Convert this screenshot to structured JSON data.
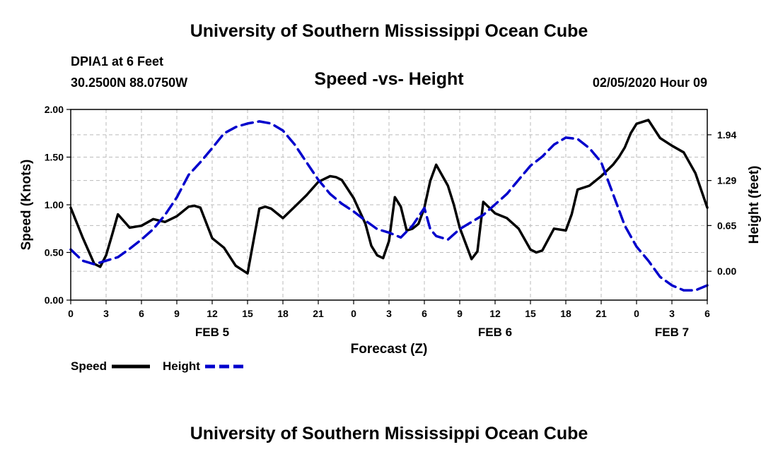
{
  "header": {
    "top_title": "University of Southern Mississippi Ocean Cube",
    "station": "DPIA1 at 6 Feet",
    "coords": "30.2500N 88.0750W",
    "datetime": "02/05/2020 Hour 09",
    "bottom_title": "University of Southern Mississippi Ocean Cube"
  },
  "colors": {
    "speed": "#000000",
    "height": "#0000cc",
    "grid": "#bbbbbb"
  },
  "legend": {
    "speed_label": "Speed",
    "height_label": "Height"
  },
  "chart_data": {
    "type": "line",
    "title": "Speed -vs- Height",
    "xlabel": "Forecast (Z)",
    "ylabel": "Speed (Knots)",
    "ylabel_right": "Height (feet)",
    "xlim": [
      0,
      54
    ],
    "ylim": [
      0,
      2
    ],
    "ylim_right": [
      -0.41,
      2.3
    ],
    "x_ticks": [
      0,
      3,
      6,
      9,
      12,
      15,
      18,
      21,
      24,
      27,
      30,
      33,
      36,
      39,
      42,
      45,
      48,
      51,
      54
    ],
    "x_tick_labels": [
      "0",
      "3",
      "6",
      "9",
      "12",
      "15",
      "18",
      "21",
      "0",
      "3",
      "6",
      "9",
      "12",
      "15",
      "18",
      "21",
      "0",
      "3",
      "6"
    ],
    "y_ticks": [
      0,
      0.5,
      1,
      1.5,
      2
    ],
    "y_tick_labels": [
      "0.00",
      "0.50",
      "1.00",
      "1.50",
      "2.00"
    ],
    "y_right_ticks": [
      0,
      0.65,
      1.29,
      1.94
    ],
    "y_right_tick_labels": [
      "0.00",
      "0.65",
      "1.29",
      "1.94"
    ],
    "date_labels": [
      {
        "x": 12,
        "label": "FEB 5"
      },
      {
        "x": 36,
        "label": "FEB 6"
      },
      {
        "x": 51,
        "label": "FEB 7"
      }
    ],
    "series": [
      {
        "name": "Speed",
        "axis": "left",
        "x": [
          0,
          1,
          2,
          2.5,
          3,
          3.5,
          4,
          5,
          6,
          7,
          8,
          9,
          10,
          10.5,
          11,
          12,
          13,
          14,
          15,
          16,
          16.5,
          17,
          18,
          19,
          20,
          21,
          22,
          22.5,
          23,
          24,
          25,
          25.5,
          26,
          26.5,
          27,
          27.5,
          28,
          28.5,
          29,
          29.5,
          30,
          30.5,
          31,
          32,
          32.5,
          33,
          34,
          34.5,
          35,
          36,
          37,
          38,
          39,
          39.5,
          40,
          41,
          42,
          42.5,
          43,
          44,
          45,
          46,
          46.5,
          47,
          47.5,
          48,
          49,
          50,
          51,
          52,
          53,
          54
        ],
        "values": [
          0.97,
          0.66,
          0.38,
          0.35,
          0.47,
          0.68,
          0.9,
          0.76,
          0.78,
          0.85,
          0.82,
          0.88,
          0.98,
          0.99,
          0.97,
          0.65,
          0.55,
          0.36,
          0.28,
          0.96,
          0.98,
          0.96,
          0.86,
          0.98,
          1.1,
          1.24,
          1.3,
          1.29,
          1.26,
          1.07,
          0.8,
          0.57,
          0.47,
          0.44,
          0.62,
          1.08,
          0.98,
          0.73,
          0.75,
          0.8,
          0.97,
          1.25,
          1.42,
          1.2,
          1.0,
          0.76,
          0.43,
          0.51,
          1.03,
          0.91,
          0.86,
          0.75,
          0.53,
          0.5,
          0.52,
          0.75,
          0.73,
          0.9,
          1.16,
          1.2,
          1.3,
          1.42,
          1.5,
          1.6,
          1.75,
          1.85,
          1.89,
          1.7,
          1.62,
          1.55,
          1.33,
          0.97
        ]
      },
      {
        "name": "Height",
        "axis": "right",
        "x": [
          0,
          1,
          2,
          3,
          4,
          5,
          6,
          7,
          8,
          9,
          10,
          11,
          12,
          13,
          14,
          15,
          16,
          17,
          18,
          19,
          20,
          21,
          22,
          23,
          24,
          25,
          26,
          27,
          28,
          29,
          30,
          30.5,
          31,
          32,
          33,
          34,
          35,
          36,
          37,
          38,
          39,
          40,
          41,
          42,
          43,
          44,
          45,
          46,
          47,
          48,
          49,
          50,
          51,
          52,
          53,
          54
        ],
        "values": [
          0.31,
          0.15,
          0.1,
          0.15,
          0.2,
          0.32,
          0.45,
          0.6,
          0.8,
          1.05,
          1.37,
          1.55,
          1.75,
          1.96,
          2.05,
          2.1,
          2.13,
          2.1,
          2.0,
          1.8,
          1.55,
          1.3,
          1.1,
          0.96,
          0.85,
          0.72,
          0.6,
          0.55,
          0.48,
          0.65,
          0.9,
          0.6,
          0.5,
          0.45,
          0.6,
          0.7,
          0.8,
          0.95,
          1.1,
          1.3,
          1.5,
          1.63,
          1.8,
          1.9,
          1.88,
          1.75,
          1.55,
          1.1,
          0.65,
          0.35,
          0.15,
          -0.08,
          -0.2,
          -0.27,
          -0.27,
          -0.2
        ]
      }
    ],
    "legend_position": "bottom-left",
    "grid": true
  }
}
